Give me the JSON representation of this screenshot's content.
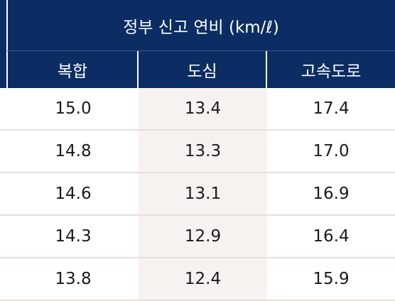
{
  "table": {
    "title": "정부 신고 연비 (km/ℓ)",
    "columns": [
      "복합",
      "도심",
      "고속도로"
    ],
    "rows": [
      [
        "15.0",
        "13.4",
        "17.4"
      ],
      [
        "14.8",
        "13.3",
        "17.0"
      ],
      [
        "14.6",
        "13.1",
        "16.9"
      ],
      [
        "14.3",
        "12.9",
        "16.4"
      ],
      [
        "13.8",
        "12.4",
        "15.9"
      ]
    ]
  }
}
